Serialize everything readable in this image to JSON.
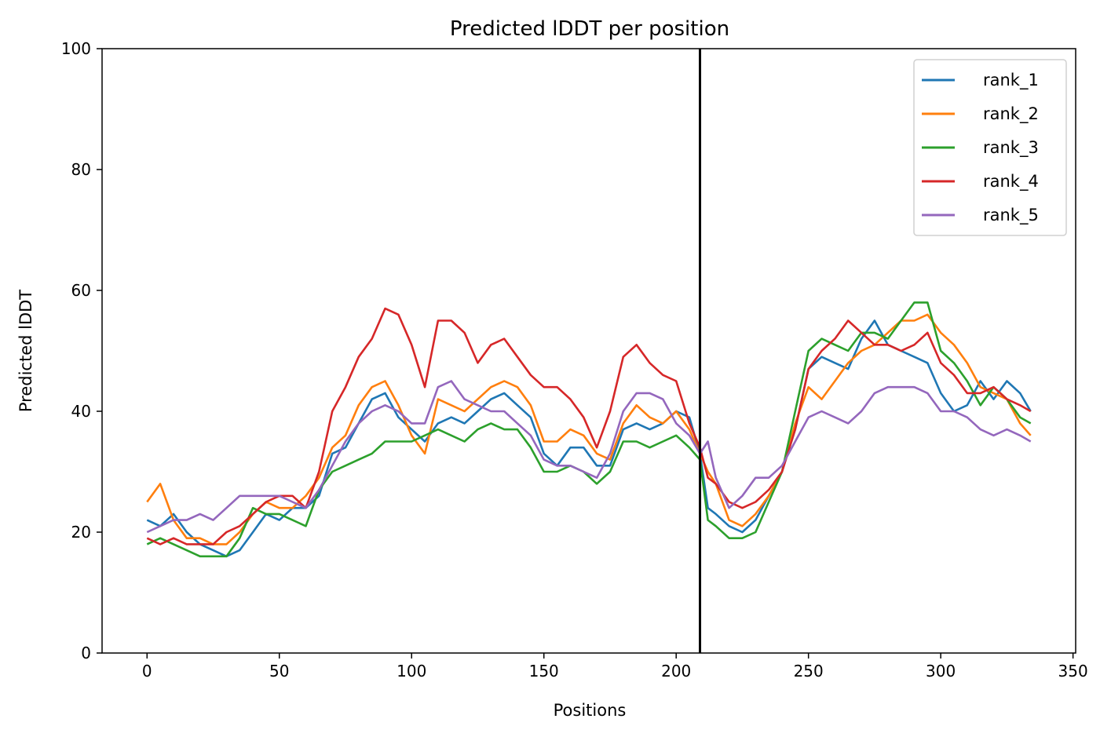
{
  "chart_data": {
    "type": "line",
    "title": "Predicted lDDT per position",
    "xlabel": "Positions",
    "ylabel": "Predicted lDDT",
    "xlim": [
      -17,
      351
    ],
    "ylim": [
      0,
      100
    ],
    "xticks": [
      0,
      50,
      100,
      150,
      200,
      250,
      300,
      350
    ],
    "yticks": [
      0,
      20,
      40,
      60,
      80,
      100
    ],
    "grid": false,
    "legend_position": "top-right",
    "vline_x": 209,
    "series": [
      {
        "name": "rank_1",
        "color": "#1f77b4",
        "x": [
          0,
          5,
          10,
          15,
          20,
          25,
          30,
          35,
          40,
          45,
          50,
          55,
          60,
          65,
          70,
          75,
          80,
          85,
          90,
          95,
          100,
          105,
          110,
          115,
          120,
          125,
          130,
          135,
          140,
          145,
          150,
          155,
          160,
          165,
          170,
          175,
          180,
          185,
          190,
          195,
          200,
          205,
          209,
          212,
          215,
          220,
          225,
          230,
          235,
          240,
          245,
          250,
          255,
          260,
          265,
          270,
          275,
          280,
          285,
          290,
          295,
          300,
          305,
          310,
          315,
          320,
          325,
          330,
          334
        ],
        "values": [
          22,
          21,
          23,
          20,
          18,
          17,
          16,
          17,
          20,
          23,
          22,
          24,
          24,
          26,
          33,
          34,
          38,
          42,
          43,
          39,
          37,
          35,
          38,
          39,
          38,
          40,
          42,
          43,
          41,
          39,
          33,
          31,
          34,
          34,
          31,
          31,
          37,
          38,
          37,
          38,
          40,
          39,
          33,
          24,
          23,
          21,
          20,
          22,
          26,
          30,
          37,
          47,
          49,
          48,
          47,
          52,
          55,
          51,
          50,
          49,
          48,
          43,
          40,
          41,
          45,
          42,
          45,
          43,
          40
        ]
      },
      {
        "name": "rank_2",
        "color": "#ff7f0e",
        "x": [
          0,
          5,
          10,
          15,
          20,
          25,
          30,
          35,
          40,
          45,
          50,
          55,
          60,
          65,
          70,
          75,
          80,
          85,
          90,
          95,
          100,
          105,
          110,
          115,
          120,
          125,
          130,
          135,
          140,
          145,
          150,
          155,
          160,
          165,
          170,
          175,
          180,
          185,
          190,
          195,
          200,
          205,
          209,
          212,
          215,
          220,
          225,
          230,
          235,
          240,
          245,
          250,
          255,
          260,
          265,
          270,
          275,
          280,
          285,
          290,
          295,
          300,
          305,
          310,
          315,
          320,
          325,
          330,
          334
        ],
        "values": [
          25,
          28,
          22,
          19,
          19,
          18,
          18,
          20,
          23,
          25,
          24,
          24,
          26,
          29,
          34,
          36,
          41,
          44,
          45,
          41,
          36,
          33,
          42,
          41,
          40,
          42,
          44,
          45,
          44,
          41,
          35,
          35,
          37,
          36,
          33,
          32,
          38,
          41,
          39,
          38,
          40,
          37,
          33,
          30,
          28,
          22,
          21,
          23,
          26,
          30,
          38,
          44,
          42,
          45,
          48,
          50,
          51,
          53,
          55,
          55,
          56,
          53,
          51,
          48,
          44,
          43,
          42,
          38,
          36
        ]
      },
      {
        "name": "rank_3",
        "color": "#2ca02c",
        "x": [
          0,
          5,
          10,
          15,
          20,
          25,
          30,
          35,
          40,
          45,
          50,
          55,
          60,
          65,
          70,
          75,
          80,
          85,
          90,
          95,
          100,
          105,
          110,
          115,
          120,
          125,
          130,
          135,
          140,
          145,
          150,
          155,
          160,
          165,
          170,
          175,
          180,
          185,
          190,
          195,
          200,
          205,
          209,
          212,
          215,
          220,
          225,
          230,
          235,
          240,
          245,
          250,
          255,
          260,
          265,
          270,
          275,
          280,
          285,
          290,
          295,
          300,
          305,
          310,
          315,
          320,
          325,
          330,
          334
        ],
        "values": [
          18,
          19,
          18,
          17,
          16,
          16,
          16,
          19,
          24,
          23,
          23,
          22,
          21,
          27,
          30,
          31,
          32,
          33,
          35,
          35,
          35,
          36,
          37,
          36,
          35,
          37,
          38,
          37,
          37,
          34,
          30,
          30,
          31,
          30,
          28,
          30,
          35,
          35,
          34,
          35,
          36,
          34,
          32,
          22,
          21,
          19,
          19,
          20,
          25,
          30,
          40,
          50,
          52,
          51,
          50,
          53,
          53,
          52,
          55,
          58,
          58,
          50,
          48,
          45,
          41,
          44,
          42,
          39,
          38
        ]
      },
      {
        "name": "rank_4",
        "color": "#d62728",
        "x": [
          0,
          5,
          10,
          15,
          20,
          25,
          30,
          35,
          40,
          45,
          50,
          55,
          60,
          65,
          70,
          75,
          80,
          85,
          90,
          95,
          100,
          105,
          110,
          115,
          120,
          125,
          130,
          135,
          140,
          145,
          150,
          155,
          160,
          165,
          170,
          175,
          180,
          185,
          190,
          195,
          200,
          205,
          209,
          212,
          215,
          220,
          225,
          230,
          235,
          240,
          245,
          250,
          255,
          260,
          265,
          270,
          275,
          280,
          285,
          290,
          295,
          300,
          305,
          310,
          315,
          320,
          325,
          330,
          334
        ],
        "values": [
          19,
          18,
          19,
          18,
          18,
          18,
          20,
          21,
          23,
          25,
          26,
          26,
          24,
          30,
          40,
          44,
          49,
          52,
          57,
          56,
          51,
          44,
          55,
          55,
          53,
          48,
          51,
          52,
          49,
          46,
          44,
          44,
          42,
          39,
          34,
          40,
          49,
          51,
          48,
          46,
          45,
          38,
          34,
          29,
          28,
          25,
          24,
          25,
          27,
          30,
          37,
          47,
          50,
          52,
          55,
          53,
          51,
          51,
          50,
          51,
          53,
          48,
          46,
          43,
          43,
          44,
          42,
          41,
          40
        ]
      },
      {
        "name": "rank_5",
        "color": "#9467bd",
        "x": [
          0,
          5,
          10,
          15,
          20,
          25,
          30,
          35,
          40,
          45,
          50,
          55,
          60,
          65,
          70,
          75,
          80,
          85,
          90,
          95,
          100,
          105,
          110,
          115,
          120,
          125,
          130,
          135,
          140,
          145,
          150,
          155,
          160,
          165,
          170,
          175,
          180,
          185,
          190,
          195,
          200,
          205,
          209,
          212,
          215,
          220,
          225,
          230,
          235,
          240,
          245,
          250,
          255,
          260,
          265,
          270,
          275,
          280,
          285,
          290,
          295,
          300,
          305,
          310,
          315,
          320,
          325,
          330,
          334
        ],
        "values": [
          20,
          21,
          22,
          22,
          23,
          22,
          24,
          26,
          26,
          26,
          26,
          25,
          24,
          27,
          31,
          35,
          38,
          40,
          41,
          40,
          38,
          38,
          44,
          45,
          42,
          41,
          40,
          40,
          38,
          36,
          32,
          31,
          31,
          30,
          29,
          33,
          40,
          43,
          43,
          42,
          38,
          36,
          33,
          35,
          29,
          24,
          26,
          29,
          29,
          31,
          35,
          39,
          40,
          39,
          38,
          40,
          43,
          44,
          44,
          44,
          43,
          40,
          40,
          39,
          37,
          36,
          37,
          36,
          35
        ]
      }
    ]
  }
}
